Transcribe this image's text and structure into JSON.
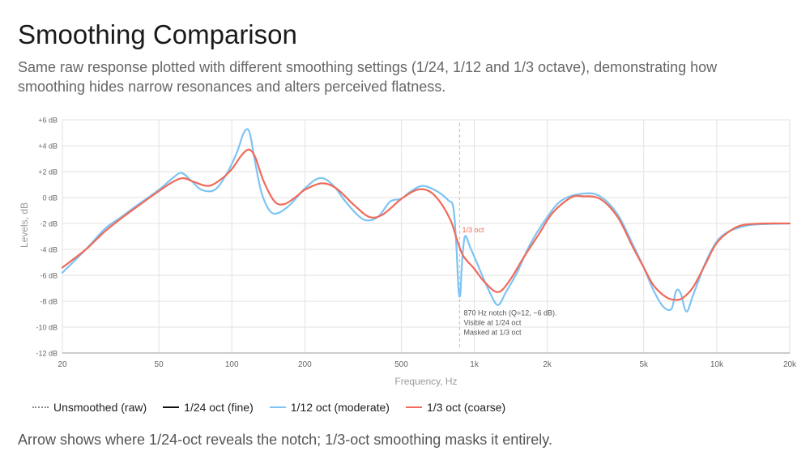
{
  "title": "Smoothing Comparison",
  "subtitle": "Same raw response plotted with different smoothing settings (1/24, 1/12 and 1/3 octave), demonstrating how smoothing hides narrow resonances and alters perceived flatness.",
  "footer": "Arrow shows where 1/24-oct reveals the notch; 1/3-oct smoothing masks it entirely.",
  "legend": [
    {
      "label": "Unsmoothed (raw)",
      "color": "#8a8a8a",
      "style": "dotted"
    },
    {
      "label": "1/24 oct (fine)",
      "color": "#111111",
      "style": "solid"
    },
    {
      "label": "1/12 oct (moderate)",
      "color": "#7cc4f4",
      "style": "solid"
    },
    {
      "label": "1/3 oct (coarse)",
      "color": "#f06a5a",
      "style": "solid"
    }
  ],
  "annotations": {
    "series_label": "1/3 oct",
    "note_lines": [
      "870 Hz notch (Q=12, −6 dB).",
      "Visible at 1/24 oct",
      "Masked at 1/3 oct"
    ],
    "marker_freq": 870
  },
  "chart_data": {
    "type": "line",
    "xscale": "log",
    "xlabel": "Frequency, Hz",
    "ylabel": "Levels, dB",
    "xlim": [
      20,
      20000
    ],
    "ylim": [
      -12,
      6
    ],
    "grid": true,
    "legend_position": "bottom",
    "x_ticks": [
      {
        "value": 20,
        "label": "20"
      },
      {
        "value": 50,
        "label": "50"
      },
      {
        "value": 100,
        "label": "100"
      },
      {
        "value": 200,
        "label": "200"
      },
      {
        "value": 500,
        "label": "500"
      },
      {
        "value": 1000,
        "label": "1k"
      },
      {
        "value": 2000,
        "label": "2k"
      },
      {
        "value": 5000,
        "label": "5k"
      },
      {
        "value": 10000,
        "label": "10k"
      },
      {
        "value": 20000,
        "label": "20k"
      }
    ],
    "y_ticks": [
      {
        "value": 6,
        "label": "+6 dB"
      },
      {
        "value": 4,
        "label": "+4 dB"
      },
      {
        "value": 2,
        "label": "+2 dB"
      },
      {
        "value": 0,
        "label": "0 dB"
      },
      {
        "value": -2,
        "label": "-2 dB"
      },
      {
        "value": -4,
        "label": "-4 dB"
      },
      {
        "value": -6,
        "label": "-6 dB"
      },
      {
        "value": -8,
        "label": "-8 dB"
      },
      {
        "value": -10,
        "label": "-10 dB"
      },
      {
        "value": -12,
        "label": "-12 dB"
      }
    ],
    "series": [
      {
        "name": "1/12 oct (moderate)",
        "color": "#7cc4f4",
        "points": [
          [
            20,
            -5.8
          ],
          [
            25,
            -4.0
          ],
          [
            30,
            -2.4
          ],
          [
            35,
            -1.5
          ],
          [
            40,
            -0.7
          ],
          [
            50,
            0.6
          ],
          [
            57,
            1.5
          ],
          [
            62,
            1.9
          ],
          [
            68,
            1.3
          ],
          [
            75,
            0.6
          ],
          [
            85,
            0.6
          ],
          [
            95,
            1.8
          ],
          [
            105,
            3.5
          ],
          [
            112,
            5.0
          ],
          [
            118,
            5.1
          ],
          [
            124,
            3.0
          ],
          [
            132,
            0.5
          ],
          [
            143,
            -1.0
          ],
          [
            155,
            -1.2
          ],
          [
            175,
            -0.5
          ],
          [
            200,
            0.7
          ],
          [
            230,
            1.5
          ],
          [
            260,
            1.0
          ],
          [
            300,
            -0.5
          ],
          [
            350,
            -1.7
          ],
          [
            400,
            -1.5
          ],
          [
            450,
            -0.3
          ],
          [
            500,
            -0.1
          ],
          [
            540,
            0.4
          ],
          [
            610,
            0.9
          ],
          [
            700,
            0.5
          ],
          [
            780,
            -0.2
          ],
          [
            820,
            -0.8
          ],
          [
            845,
            -4.0
          ],
          [
            860,
            -7.0
          ],
          [
            875,
            -7.5
          ],
          [
            890,
            -5.0
          ],
          [
            915,
            -3.0
          ],
          [
            960,
            -3.8
          ],
          [
            1050,
            -5.5
          ],
          [
            1150,
            -7.2
          ],
          [
            1250,
            -8.3
          ],
          [
            1350,
            -7.3
          ],
          [
            1500,
            -5.8
          ],
          [
            1700,
            -3.6
          ],
          [
            2000,
            -1.5
          ],
          [
            2300,
            -0.2
          ],
          [
            2800,
            0.3
          ],
          [
            3300,
            0.1
          ],
          [
            3900,
            -1.3
          ],
          [
            4500,
            -3.6
          ],
          [
            5000,
            -5.4
          ],
          [
            5500,
            -7.2
          ],
          [
            6000,
            -8.4
          ],
          [
            6500,
            -8.6
          ],
          [
            6800,
            -7.2
          ],
          [
            7100,
            -7.4
          ],
          [
            7500,
            -8.8
          ],
          [
            8000,
            -7.5
          ],
          [
            9000,
            -5.0
          ],
          [
            10000,
            -3.4
          ],
          [
            11000,
            -2.7
          ],
          [
            12000,
            -2.4
          ],
          [
            14000,
            -2.1
          ],
          [
            20000,
            -2.0
          ]
        ]
      },
      {
        "name": "1/3 oct (coarse)",
        "color": "#f06a5a",
        "points": [
          [
            20,
            -5.4
          ],
          [
            25,
            -4.0
          ],
          [
            30,
            -2.6
          ],
          [
            35,
            -1.6
          ],
          [
            40,
            -0.8
          ],
          [
            50,
            0.5
          ],
          [
            57,
            1.2
          ],
          [
            63,
            1.5
          ],
          [
            70,
            1.2
          ],
          [
            80,
            0.9
          ],
          [
            90,
            1.4
          ],
          [
            100,
            2.2
          ],
          [
            110,
            3.3
          ],
          [
            118,
            3.7
          ],
          [
            125,
            3.1
          ],
          [
            135,
            1.3
          ],
          [
            150,
            -0.3
          ],
          [
            165,
            -0.5
          ],
          [
            185,
            0.1
          ],
          [
            200,
            0.6
          ],
          [
            235,
            1.1
          ],
          [
            270,
            0.7
          ],
          [
            320,
            -0.6
          ],
          [
            370,
            -1.5
          ],
          [
            420,
            -1.3
          ],
          [
            500,
            -0.1
          ],
          [
            580,
            0.6
          ],
          [
            650,
            0.5
          ],
          [
            720,
            -0.3
          ],
          [
            800,
            -1.8
          ],
          [
            850,
            -3.3
          ],
          [
            900,
            -4.5
          ],
          [
            1000,
            -5.5
          ],
          [
            1100,
            -6.5
          ],
          [
            1250,
            -7.3
          ],
          [
            1400,
            -6.4
          ],
          [
            1600,
            -4.6
          ],
          [
            1850,
            -2.8
          ],
          [
            2100,
            -1.2
          ],
          [
            2500,
            0.0
          ],
          [
            2800,
            0.1
          ],
          [
            3300,
            -0.1
          ],
          [
            3900,
            -1.5
          ],
          [
            4500,
            -3.8
          ],
          [
            5000,
            -5.4
          ],
          [
            5500,
            -6.8
          ],
          [
            6200,
            -7.7
          ],
          [
            6800,
            -7.9
          ],
          [
            7300,
            -7.7
          ],
          [
            8000,
            -6.9
          ],
          [
            9000,
            -5.1
          ],
          [
            10000,
            -3.5
          ],
          [
            11500,
            -2.5
          ],
          [
            13000,
            -2.1
          ],
          [
            16000,
            -2.0
          ],
          [
            20000,
            -2.0
          ]
        ]
      }
    ]
  }
}
